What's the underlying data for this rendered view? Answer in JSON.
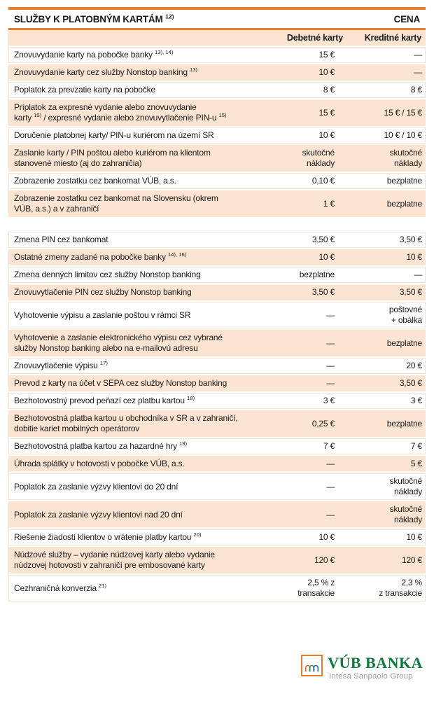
{
  "page": {
    "title": "SLUŽBY K PLATOBNÝM KARTÁM [[12)]]",
    "price_label": "CENA"
  },
  "columns": {
    "debit": "Debetné karty",
    "credit": "Kreditné karty"
  },
  "table1": {
    "rows": [
      {
        "desc": "Znovuvydanie karty na pobočke banky [[13), 14)]]",
        "debit": "15 €",
        "credit": "—"
      },
      {
        "desc": "Znovuvydanie karty cez služby Nonstop banking [[13)]]",
        "debit": "10 €",
        "credit": "—"
      },
      {
        "desc": "Poplatok za prevzatie karty na pobočke",
        "debit": "8 €",
        "credit": "8 €"
      },
      {
        "desc": "Príplatok za expresné vydanie alebo znovuvydanie\nkarty [[15)]] / expresné vydanie alebo znovuvytlačenie PIN-u [[15)]]",
        "debit": "15 €",
        "credit": "15 € / 15 €"
      },
      {
        "desc": "Doručenie platobnej karty/ PIN-u kuriérom na území SR",
        "debit": "10 €",
        "credit": "10 € / 10 €"
      },
      {
        "desc": "Zaslanie karty / PIN poštou alebo kuriérom  na klientom\nstanovené miesto (aj do zahraničia)",
        "debit": "skutočné\nnáklady",
        "credit": "skutočné\nnáklady"
      },
      {
        "desc": "Zobrazenie zostatku cez bankomat VÚB, a.s.",
        "debit": "0,10 €",
        "credit": "bezplatne"
      },
      {
        "desc": "Zobrazenie zostatku cez bankomat na Slovensku (okrem\nVÚB, a.s.) a v zahraničí",
        "debit": "1 €",
        "credit": "bezplatne"
      }
    ]
  },
  "table2": {
    "rows": [
      {
        "desc": "Zmena PIN cez bankomat",
        "debit": "3,50 €",
        "credit": "3,50 €"
      },
      {
        "desc": "Ostatné zmeny zadané na pobočke banky [[14), 16)]]",
        "debit": "10 €",
        "credit": "10 €"
      },
      {
        "desc": "Zmena denných limitov cez služby Nonstop banking",
        "debit": "bezplatne",
        "credit": "—"
      },
      {
        "desc": "Znovuvytlačenie PIN cez služby Nonstop banking",
        "debit": "3,50 €",
        "credit": "3,50 €"
      },
      {
        "desc": "Vyhotovenie výpisu a zaslanie poštou v rámci SR",
        "debit": "—",
        "credit": "poštovné\n+ obálka"
      },
      {
        "desc": "Vyhotovenie a zaslanie elektronického výpisu cez vybrané\nslužby Nonstop banking alebo na e-mailovú adresu",
        "debit": "—",
        "credit": "bezplatne"
      },
      {
        "desc": "Znovuvytlačenie výpisu [[17)]]",
        "debit": "—",
        "credit": "20 €"
      },
      {
        "desc": "Prevod z karty na účet v SEPA cez služby Nonstop banking",
        "debit": "—",
        "credit": "3,50 €"
      },
      {
        "desc": "Bezhotovostný prevod peňazí cez platbu kartou [[18)]]",
        "debit": "3 €",
        "credit": "3 €"
      },
      {
        "desc": "Bezhotovostná platba kartou u obchodníka v SR a v zahraničí,\ndobitie kariet mobilných operátorov",
        "debit": "0,25 €",
        "credit": "bezplatne"
      },
      {
        "desc": "Bezhotovostná platba kartou za hazardné hry [[19)]]",
        "debit": "7 €",
        "credit": "7 €"
      },
      {
        "desc": "Úhrada splátky v hotovosti v pobočke VÚB, a.s.",
        "debit": "—",
        "credit": "5 €"
      },
      {
        "desc": "Poplatok za zaslanie výzvy klientovi do 20 dní",
        "debit": "—",
        "credit": "skutočné\nnáklady"
      },
      {
        "desc": "Poplatok za zaslanie výzvy klientovi nad 20 dní",
        "debit": "—",
        "credit": "skutočné\nnáklady"
      },
      {
        "desc": "Riešenie žiadostí klientov o vrátenie platby kartou [[20)]]",
        "debit": "10 €",
        "credit": "10 €"
      },
      {
        "desc": "Núdzové služby – vydanie núdzovej karty alebo vydanie\nnúdzovej hotovosti v zahraničí pre embosované karty",
        "debit": "120 €",
        "credit": "120 €"
      },
      {
        "desc": "Cezhraničná konverzia [[21)]]",
        "debit": "2,5 % z transakcie",
        "credit": "2,3 %\nz transakcie"
      }
    ]
  },
  "footer": {
    "brand": "VÚB BANKA",
    "group": "Intesa Sanpaolo Group",
    "logo_icon": "aqueduct-arches-icon"
  },
  "colors": {
    "accent_orange": "#E87E2B",
    "row_peach": "#FBE4D1",
    "brand_green": "#0E7A3D",
    "group_gray": "#94999B"
  }
}
